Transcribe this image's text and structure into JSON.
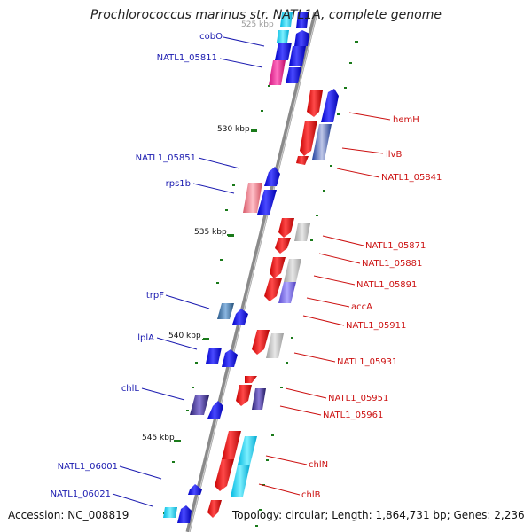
{
  "title": "Prochlorococcus marinus str. NATL1A, complete genome",
  "accession": "Accession: NC_008819",
  "topology": "Topology: circular; Length: 1,864,731 bp; Genes: 2,236",
  "ticks": {
    "top_partial": "525 kbp",
    "t530": "530 kbp",
    "t535": "535 kbp",
    "t540": "540 kbp",
    "t545": "545 kbp"
  },
  "colors": {
    "forward_strand": "#1010e6",
    "reverse_strand": "#e61010",
    "forward_label": "#1a1ab0",
    "reverse_label": "#cc1111",
    "backbone": "#888888",
    "tick": "#1a7a1a"
  },
  "genes_left": [
    {
      "name": "cobO"
    },
    {
      "name": "NATL1_05811"
    },
    {
      "name": "NATL1_05851"
    },
    {
      "name": "rps1b"
    },
    {
      "name": "trpF"
    },
    {
      "name": "lplA"
    },
    {
      "name": "chlL"
    },
    {
      "name": "NATL1_06001"
    },
    {
      "name": "NATL1_06021"
    }
  ],
  "genes_right": [
    {
      "name": "hemH"
    },
    {
      "name": "ilvB"
    },
    {
      "name": "NATL1_05841"
    },
    {
      "name": "NATL1_05871"
    },
    {
      "name": "NATL1_05881"
    },
    {
      "name": "NATL1_05891"
    },
    {
      "name": "accA"
    },
    {
      "name": "NATL1_05911"
    },
    {
      "name": "NATL1_05931"
    },
    {
      "name": "NATL1_05951"
    },
    {
      "name": "NATL1_05961"
    },
    {
      "name": "chlN"
    },
    {
      "name": "chlB"
    }
  ]
}
